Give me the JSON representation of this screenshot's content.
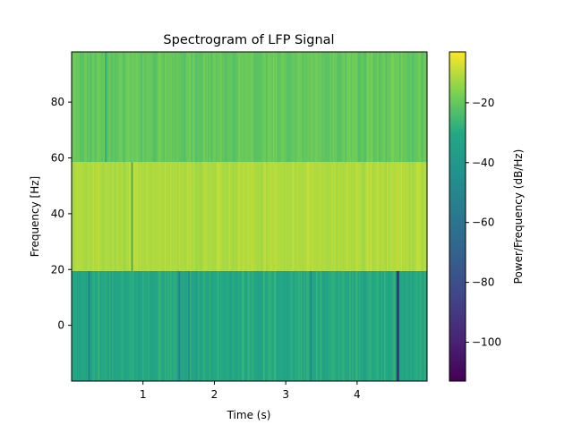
{
  "chart_data": {
    "type": "heatmap",
    "title": "Spectrogram of LFP Signal",
    "xlabel": "Time (s)",
    "ylabel": "Frequency [Hz]",
    "xlim": [
      0.0,
      4.98
    ],
    "ylim": [
      -20,
      98
    ],
    "x_ticks": [
      1,
      2,
      3,
      4
    ],
    "y_ticks": [
      0,
      20,
      40,
      60,
      80
    ],
    "colormap": "viridis",
    "colorbar": {
      "label": "Power/Frequency (dB/Hz)",
      "range": [
        -113,
        -3
      ],
      "ticks": [
        -100,
        -80,
        -60,
        -40,
        -20
      ]
    },
    "grid": false,
    "frequency_bands": [
      {
        "range_hz": [
          -20,
          19.5
        ],
        "base_db": -31,
        "variation_db": 6,
        "description_level": "mostly -25 to -40 dB with darker dips"
      },
      {
        "range_hz": [
          19.5,
          58.5
        ],
        "base_db": -11,
        "variation_db": 2.5,
        "description_level": "mostly -8 to -15 dB"
      },
      {
        "range_hz": [
          58.5,
          98
        ],
        "base_db": -20,
        "variation_db": 3.5,
        "description_level": "mostly -15 to -27 dB"
      }
    ],
    "notable_columns": [
      {
        "time_s": 0.24,
        "band": "low",
        "db": -55
      },
      {
        "time_s": 0.25,
        "band": "low",
        "db": -60
      },
      {
        "time_s": 0.48,
        "band": "high",
        "db": -30
      },
      {
        "time_s": 0.84,
        "band": "middle",
        "db": -30
      },
      {
        "time_s": 0.85,
        "band": "low",
        "db": -30
      },
      {
        "time_s": 1.5,
        "band": "low",
        "db": -55
      },
      {
        "time_s": 1.65,
        "band": "low",
        "db": -50
      },
      {
        "time_s": 3.35,
        "band": "low",
        "db": -55
      },
      {
        "time_s": 4.57,
        "band": "low",
        "db": -95
      },
      {
        "time_s": 4.58,
        "band": "low",
        "db": -90
      }
    ]
  }
}
